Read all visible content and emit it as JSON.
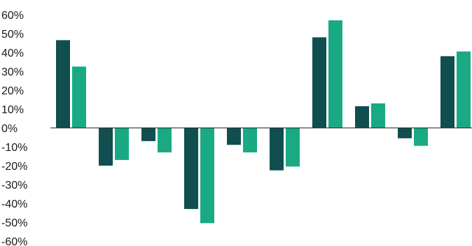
{
  "chart_data": {
    "type": "bar",
    "title": "",
    "xlabel": "",
    "ylabel": "",
    "ylim": [
      -60,
      60
    ],
    "y_ticks": [
      "60%",
      "50%",
      "40%",
      "30%",
      "20%",
      "10%",
      "0%",
      "-10%",
      "-20%",
      "-30%",
      "-40%",
      "-50%",
      "-60%"
    ],
    "y_tick_values": [
      60,
      50,
      40,
      30,
      20,
      10,
      0,
      -10,
      -20,
      -30,
      -40,
      -50,
      -60
    ],
    "categories": [
      "",
      "",
      "",
      "",
      "",
      "",
      "",
      "",
      "",
      ""
    ],
    "grid": false,
    "legend": "none",
    "series": [
      {
        "color": "#114e4f",
        "values": [
          46.5,
          -20,
          -7,
          -43,
          -9,
          -22.5,
          48,
          11.5,
          -5.5,
          38
        ]
      },
      {
        "color": "#1aaa83",
        "values": [
          32.5,
          -17,
          -13,
          -50.5,
          -13,
          -20.5,
          57,
          13,
          -9.5,
          40.5
        ]
      }
    ]
  }
}
